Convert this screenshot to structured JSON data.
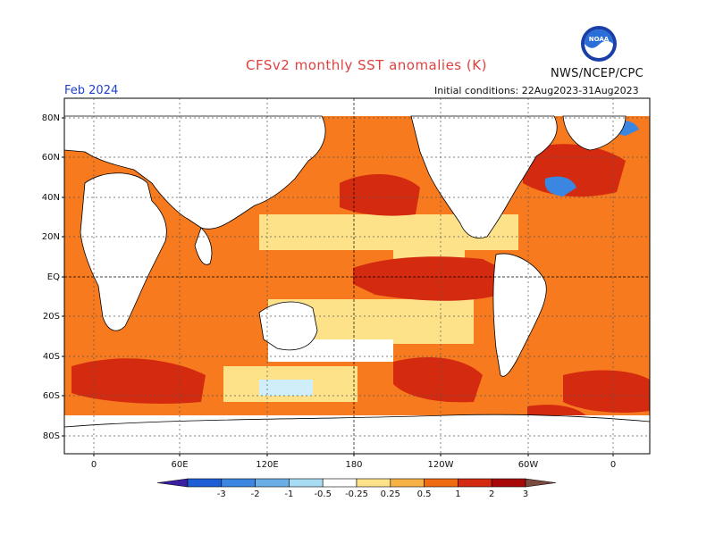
{
  "header": {
    "title": "CFSv2 monthly SST anomalies (K)",
    "valid_date": "Feb 2024",
    "initial_conditions": "Initial conditions: 22Aug2023-31Aug2023",
    "agency": "NWS/NCEP/CPC",
    "logo_text": "NOAA"
  },
  "map": {
    "projection": "cylindrical equidistant",
    "lat_labels": [
      "80N",
      "60N",
      "40N",
      "20N",
      "EQ",
      "20S",
      "40S",
      "60S",
      "80S"
    ],
    "lon_labels": [
      "0",
      "60E",
      "120E",
      "180",
      "120W",
      "60W",
      "0"
    ],
    "grid": true,
    "anomaly_regions": [
      {
        "name": "equatorial-pacific",
        "category": "2"
      },
      {
        "name": "northeast-pacific",
        "category": "1"
      },
      {
        "name": "north-atlantic",
        "category": "1"
      },
      {
        "name": "indian-ocean",
        "category": "1"
      },
      {
        "name": "southern-ocean",
        "category": "1"
      },
      {
        "name": "labrador-sea",
        "category": "-1"
      }
    ]
  },
  "colorbar": {
    "labels": [
      "-3",
      "-2",
      "-1",
      "-0.5",
      "-0.25",
      "0.25",
      "0.5",
      "1",
      "2",
      "3"
    ],
    "colors": [
      "#3b1fa3",
      "#1d5ed6",
      "#3a86e0",
      "#6aaee8",
      "#a8dcf2",
      "#ffffff",
      "#fde28a",
      "#f7b245",
      "#f06a10",
      "#d42a10",
      "#a80808",
      "#7a4a40"
    ]
  }
}
